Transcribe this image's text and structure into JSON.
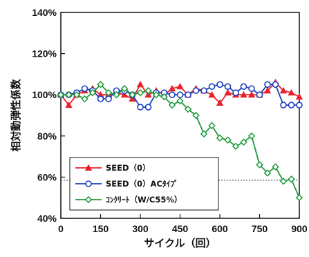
{
  "chart_data": {
    "type": "line",
    "title": "",
    "xlabel": "サイクル（回）",
    "ylabel": "相対動弾性係数",
    "xlim": [
      0,
      900
    ],
    "ylim": [
      40,
      140
    ],
    "x_ticks": [
      0,
      150,
      300,
      450,
      600,
      750,
      900
    ],
    "y_ticks": [
      40,
      60,
      80,
      100,
      120,
      140
    ],
    "y_tick_labels": [
      "40%",
      "60%",
      "80%",
      "100%",
      "120%",
      "140%"
    ],
    "grid": false,
    "legend_position": "bottom-left",
    "reference_line": {
      "y": 58.5,
      "style": "dotted"
    },
    "series": [
      {
        "name": "SEED（0）",
        "color": "#e8202a",
        "marker": "triangle",
        "x": [
          0,
          30,
          60,
          90,
          120,
          150,
          180,
          210,
          240,
          270,
          300,
          330,
          360,
          390,
          420,
          450,
          480,
          510,
          540,
          570,
          600,
          630,
          660,
          690,
          720,
          750,
          780,
          810,
          840,
          870,
          900
        ],
        "y": [
          100,
          95,
          100,
          102,
          103,
          100,
          100,
          101,
          100,
          98,
          105,
          100,
          102,
          100,
          103,
          104,
          100,
          103,
          102,
          100,
          96,
          101,
          100,
          100,
          100,
          100,
          102,
          106,
          102,
          101,
          99
        ]
      },
      {
        "name": "SEED（0）ACﾀｲﾌﾟ",
        "color": "#1a3fbf",
        "marker": "circle",
        "x": [
          0,
          30,
          60,
          90,
          120,
          150,
          180,
          210,
          240,
          270,
          300,
          330,
          360,
          390,
          420,
          450,
          480,
          510,
          540,
          570,
          600,
          630,
          660,
          690,
          720,
          750,
          780,
          810,
          840,
          870,
          900
        ],
        "y": [
          100,
          100,
          101,
          103,
          102,
          98,
          98,
          102,
          102,
          100,
          94,
          94,
          101,
          101,
          100,
          100,
          100,
          102,
          102,
          104,
          105,
          104,
          101,
          104,
          103,
          100,
          105,
          105,
          95,
          95,
          95
        ]
      },
      {
        "name": "ｺﾝｸﾘｰﾄ（W/C55%）",
        "color": "#1e9a3a",
        "marker": "diamond",
        "x": [
          0,
          30,
          60,
          90,
          120,
          150,
          180,
          210,
          240,
          270,
          300,
          330,
          360,
          390,
          420,
          450,
          480,
          510,
          540,
          570,
          600,
          630,
          660,
          690,
          720,
          750,
          780,
          810,
          840,
          870,
          900
        ],
        "y": [
          100,
          100,
          100,
          98,
          101,
          105,
          101,
          100,
          103,
          100,
          101,
          102,
          100,
          99,
          95,
          97,
          93,
          90,
          81,
          85,
          79,
          78,
          75,
          77,
          80,
          66,
          62,
          65,
          58,
          59,
          50
        ]
      }
    ]
  }
}
